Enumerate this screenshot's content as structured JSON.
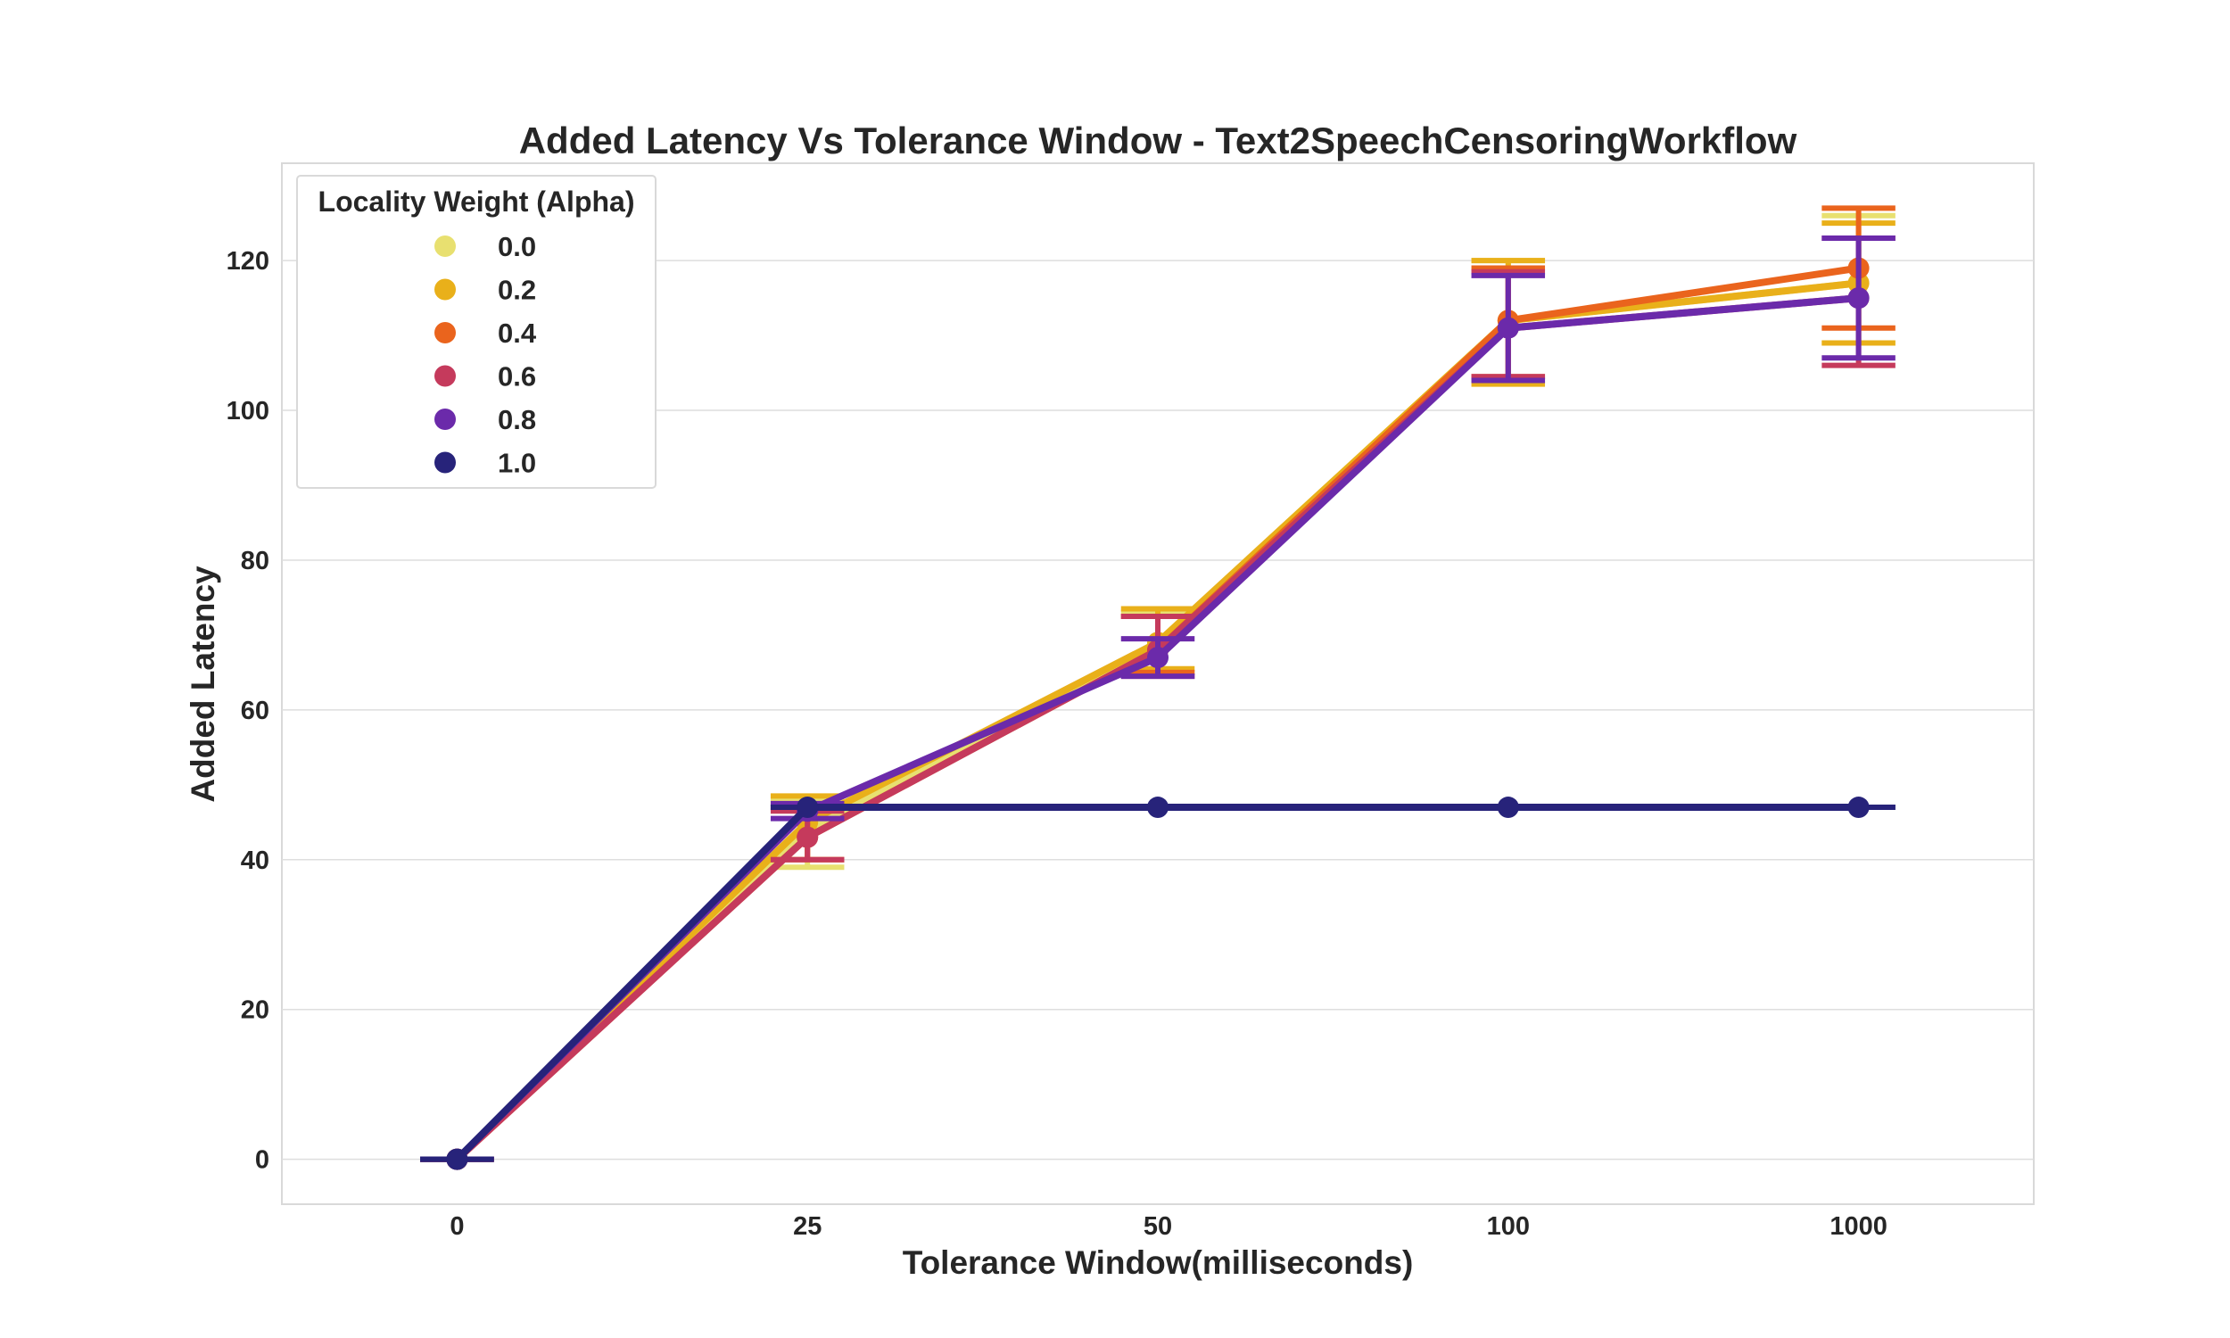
{
  "chart_data": {
    "type": "line",
    "title": "Added Latency Vs Tolerance Window - Text2SpeechCensoringWorkflow",
    "xlabel": "Tolerance Window(milliseconds)",
    "ylabel": "Added Latency",
    "categories": [
      "0",
      "25",
      "50",
      "100",
      "1000"
    ],
    "ylim": [
      -6,
      133
    ],
    "yticks": [
      0,
      20,
      40,
      60,
      80,
      100,
      120
    ],
    "grid": true,
    "legend": {
      "title": "Locality Weight (Alpha)",
      "placement": "top-left"
    },
    "series": [
      {
        "name": "0.0",
        "color": "#e8e070",
        "values": [
          0,
          44,
          69,
          112,
          117
        ],
        "errors": [
          [
            0,
            0
          ],
          [
            39,
            48
          ],
          [
            65,
            73
          ],
          [
            104,
            120
          ],
          [
            109,
            126
          ]
        ]
      },
      {
        "name": "0.2",
        "color": "#e9b01a",
        "values": [
          0,
          45,
          69,
          112,
          117
        ],
        "errors": [
          [
            0,
            0
          ],
          [
            40,
            48.5
          ],
          [
            65.5,
            73.5
          ],
          [
            103.5,
            120
          ],
          [
            109,
            125
          ]
        ]
      },
      {
        "name": "0.4",
        "color": "#ea641d",
        "values": [
          0,
          43,
          68,
          112,
          119
        ],
        "errors": [
          [
            0,
            0
          ],
          [
            40,
            47
          ],
          [
            65,
            72.5
          ],
          [
            104.5,
            119
          ],
          [
            111,
            127
          ]
        ]
      },
      {
        "name": "0.6",
        "color": "#c53a5c",
        "values": [
          0,
          43,
          68,
          111,
          115
        ],
        "errors": [
          [
            0,
            0
          ],
          [
            40,
            46.5
          ],
          [
            64.5,
            72.5
          ],
          [
            104.5,
            118.5
          ],
          [
            106,
            123
          ]
        ]
      },
      {
        "name": "0.8",
        "color": "#6b2aaa",
        "values": [
          0,
          46.5,
          67,
          111,
          115
        ],
        "errors": [
          [
            0,
            0
          ],
          [
            45.5,
            47.5
          ],
          [
            64.5,
            69.5
          ],
          [
            104,
            118
          ],
          [
            107,
            123
          ]
        ]
      },
      {
        "name": "1.0",
        "color": "#27237a",
        "values": [
          0,
          47,
          47,
          47,
          47
        ],
        "errors": [
          [
            0,
            0
          ],
          [
            47,
            47
          ],
          [
            47,
            47
          ],
          [
            47,
            47
          ],
          [
            47,
            47
          ]
        ]
      }
    ]
  }
}
